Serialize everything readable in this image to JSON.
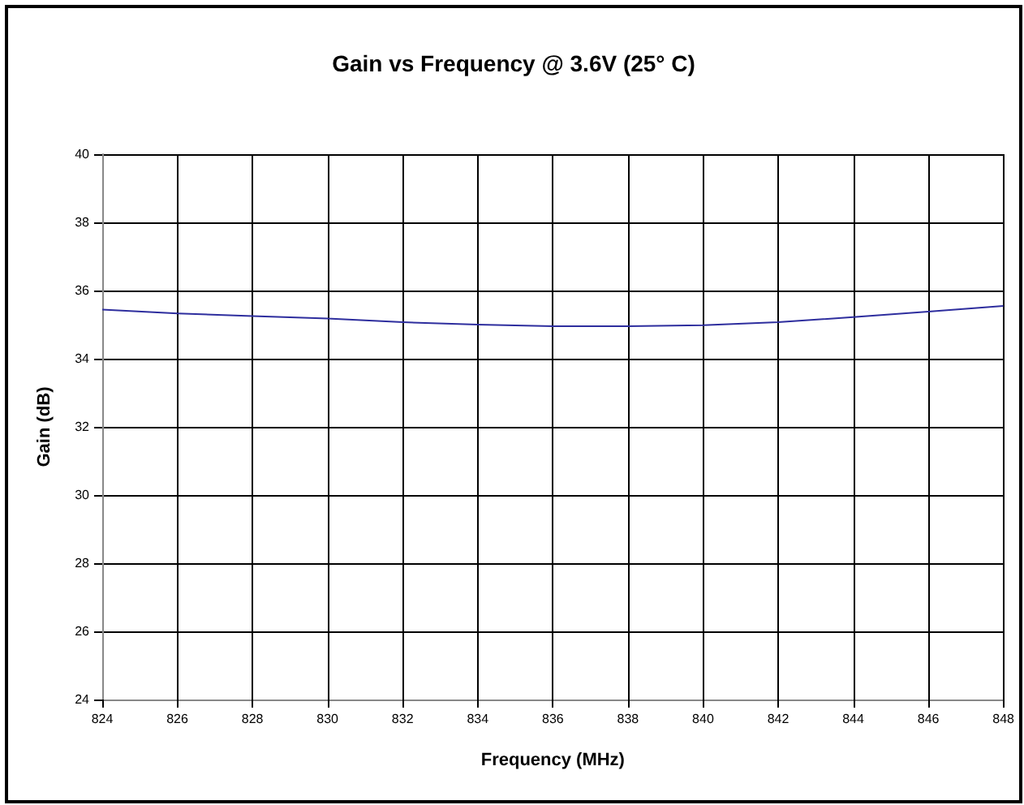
{
  "chart_data": {
    "type": "line",
    "title": "Gain vs Frequency @ 3.6V (25° C)",
    "xlabel": "Frequency (MHz)",
    "ylabel": "Gain (dB)",
    "x": [
      824,
      826,
      828,
      830,
      832,
      834,
      836,
      838,
      840,
      842,
      844,
      846,
      848
    ],
    "series": [
      {
        "color": "#2e2e9e",
        "values": [
          35.44,
          35.33,
          35.25,
          35.18,
          35.07,
          35.0,
          34.95,
          34.95,
          34.98,
          35.07,
          35.22,
          35.38,
          35.55
        ]
      }
    ],
    "xlim": [
      824,
      848
    ],
    "xticks": [
      824,
      826,
      828,
      830,
      832,
      834,
      836,
      838,
      840,
      842,
      844,
      846,
      848
    ],
    "ylim": [
      24,
      40
    ],
    "yticks": [
      24,
      26,
      28,
      30,
      32,
      34,
      36,
      38,
      40
    ],
    "grid": true,
    "marker": "none",
    "line_style": "solid"
  }
}
